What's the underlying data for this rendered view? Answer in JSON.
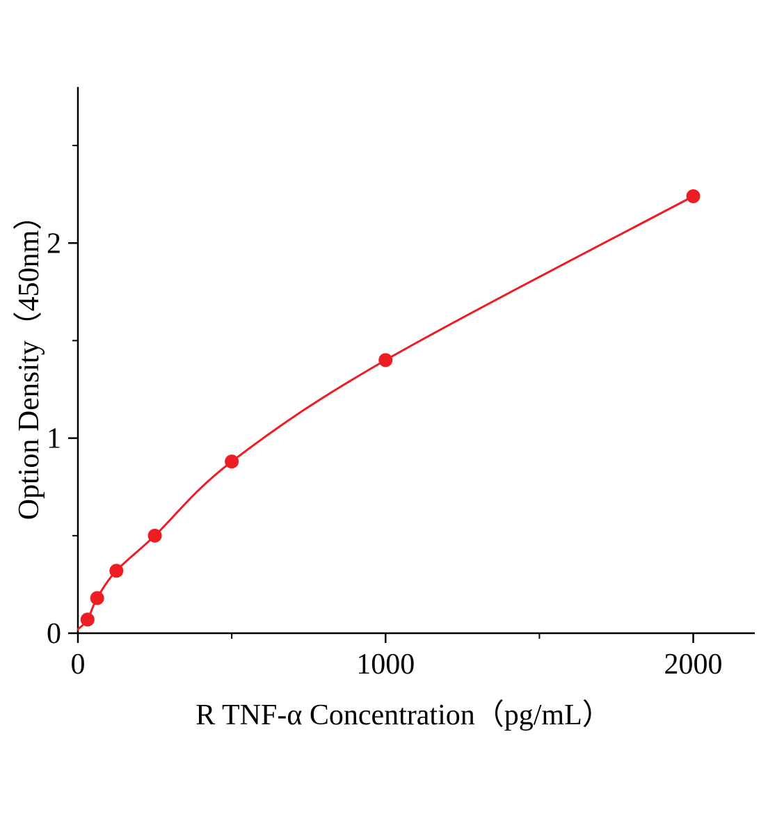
{
  "chart_data": {
    "type": "line",
    "title": "",
    "xlabel": "R TNF-α Concentration（pg/mL）",
    "ylabel": "Option Density（450nm）",
    "xlim": [
      0,
      2200
    ],
    "ylim": [
      0,
      2.8
    ],
    "x_major_ticks": [
      0,
      1000,
      2000
    ],
    "x_minor_ticks": [
      500,
      1500
    ],
    "y_major_ticks": [
      0,
      1,
      2
    ],
    "y_minor_ticks": [
      0.5,
      1.5,
      2.5
    ],
    "series_color": "#ee1c23",
    "axis_color": "#000000",
    "curve_start": {
      "x": 0,
      "y": 0.02
    },
    "points": [
      {
        "x": 31.25,
        "y": 0.07
      },
      {
        "x": 62.5,
        "y": 0.18
      },
      {
        "x": 125,
        "y": 0.32
      },
      {
        "x": 250,
        "y": 0.5
      },
      {
        "x": 500,
        "y": 0.88
      },
      {
        "x": 1000,
        "y": 1.4
      },
      {
        "x": 2000,
        "y": 2.24
      }
    ]
  }
}
